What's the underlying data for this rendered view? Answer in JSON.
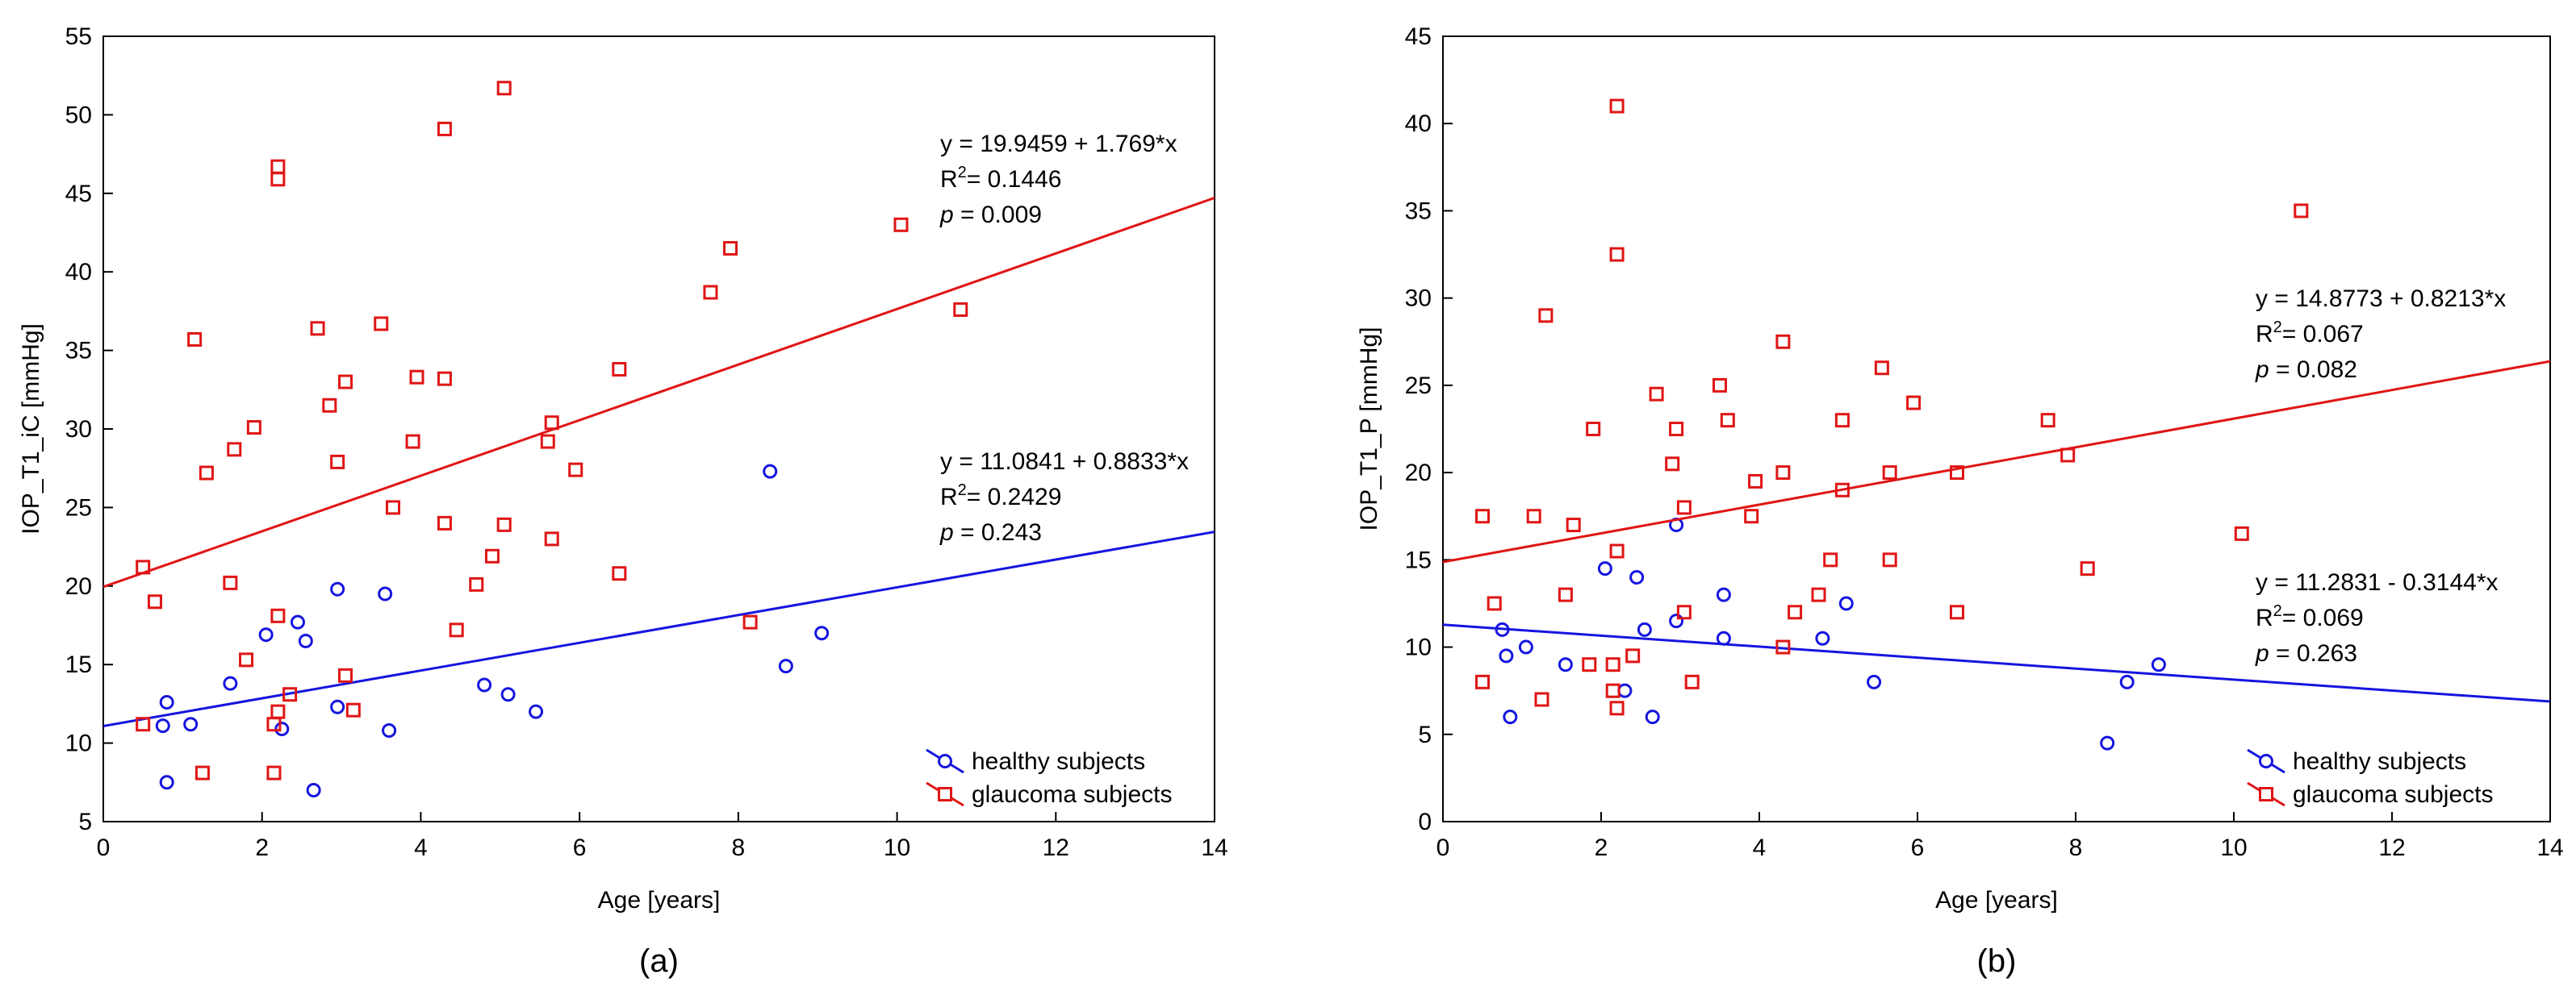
{
  "chart_data": [
    {
      "type": "scatter",
      "panel_label": "(a)",
      "xlabel": "Age [years]",
      "ylabel": "IOP_T1_iC [mmHg]",
      "xlim": [
        0,
        14
      ],
      "ylim": [
        5,
        55
      ],
      "x_ticks": [
        "0",
        "2",
        "4",
        "6",
        "8",
        "10",
        "12",
        "14"
      ],
      "y_ticks": [
        "5",
        "10",
        "15",
        "20",
        "25",
        "30",
        "35",
        "40",
        "45",
        "50",
        "55"
      ],
      "legend_position": "bottom-right",
      "series": [
        {
          "name": "healthy subjects",
          "marker": "circle",
          "color": "#1515e0",
          "points": [
            [
              0.75,
              11.1
            ],
            [
              0.8,
              12.6
            ],
            [
              0.8,
              7.5
            ],
            [
              1.1,
              11.2
            ],
            [
              1.6,
              13.8
            ],
            [
              2.05,
              16.9
            ],
            [
              2.25,
              10.9
            ],
            [
              2.45,
              17.7
            ],
            [
              2.55,
              16.5
            ],
            [
              2.65,
              7.0
            ],
            [
              2.95,
              19.8
            ],
            [
              2.95,
              12.3
            ],
            [
              3.55,
              19.5
            ],
            [
              3.6,
              10.8
            ],
            [
              4.8,
              13.7
            ],
            [
              5.1,
              13.1
            ],
            [
              5.45,
              12.0
            ],
            [
              8.4,
              27.3
            ],
            [
              8.6,
              14.9
            ],
            [
              9.05,
              17.0
            ]
          ],
          "fit": {
            "intercept": 11.0841,
            "slope": 0.8833,
            "equation": "y = 11.0841 + 0.8833*x",
            "r2_label": "R",
            "r2_sup": "2",
            "r2_value": "= 0.2429",
            "p_label": "p",
            "p_value": " = 0.243"
          }
        },
        {
          "name": "glaucoma subjects",
          "marker": "square",
          "color": "#e01515",
          "points": [
            [
              0.5,
              21.2
            ],
            [
              0.5,
              11.2
            ],
            [
              0.65,
              19.0
            ],
            [
              1.15,
              35.7
            ],
            [
              1.25,
              8.1
            ],
            [
              1.3,
              27.2
            ],
            [
              1.6,
              20.2
            ],
            [
              1.65,
              28.7
            ],
            [
              1.8,
              15.3
            ],
            [
              1.9,
              30.1
            ],
            [
              2.15,
              8.1
            ],
            [
              2.15,
              11.2
            ],
            [
              2.2,
              12.0
            ],
            [
              2.2,
              18.1
            ],
            [
              2.2,
              46.7
            ],
            [
              2.2,
              45.9
            ],
            [
              2.35,
              13.1
            ],
            [
              2.7,
              36.4
            ],
            [
              2.85,
              31.5
            ],
            [
              2.95,
              27.9
            ],
            [
              3.05,
              33.0
            ],
            [
              3.05,
              14.3
            ],
            [
              3.15,
              12.1
            ],
            [
              3.5,
              36.7
            ],
            [
              3.65,
              25.0
            ],
            [
              3.9,
              29.2
            ],
            [
              3.95,
              33.3
            ],
            [
              4.3,
              49.1
            ],
            [
              4.3,
              33.2
            ],
            [
              4.3,
              24.0
            ],
            [
              4.45,
              17.2
            ],
            [
              4.7,
              20.1
            ],
            [
              4.9,
              21.9
            ],
            [
              5.05,
              51.7
            ],
            [
              5.05,
              23.9
            ],
            [
              5.6,
              29.2
            ],
            [
              5.65,
              30.4
            ],
            [
              5.65,
              23.0
            ],
            [
              5.95,
              27.4
            ],
            [
              6.5,
              33.8
            ],
            [
              6.5,
              20.8
            ],
            [
              7.65,
              38.7
            ],
            [
              7.9,
              41.5
            ],
            [
              8.15,
              17.7
            ],
            [
              10.05,
              43.0
            ],
            [
              10.8,
              37.6
            ]
          ],
          "fit": {
            "intercept": 19.9459,
            "slope": 1.769,
            "equation": "y = 19.9459 + 1.769*x",
            "r2_label": "R",
            "r2_sup": "2",
            "r2_value": "= 0.1446",
            "p_label": "p",
            "p_value": " = 0.009"
          }
        }
      ]
    },
    {
      "type": "scatter",
      "panel_label": "(b)",
      "xlabel": "Age [years]",
      "ylabel": "IOP_T1_P [mmHg]",
      "xlim": [
        0,
        14
      ],
      "ylim": [
        0,
        45
      ],
      "x_ticks": [
        "0",
        "2",
        "4",
        "6",
        "8",
        "10",
        "12",
        "14"
      ],
      "y_ticks": [
        "0",
        "5",
        "10",
        "15",
        "20",
        "25",
        "30",
        "35",
        "40",
        "45"
      ],
      "legend_position": "bottom-right",
      "series": [
        {
          "name": "healthy subjects",
          "marker": "circle",
          "color": "#1515e0",
          "points": [
            [
              0.75,
              11.0
            ],
            [
              0.8,
              9.5
            ],
            [
              0.85,
              6.0
            ],
            [
              1.05,
              10.0
            ],
            [
              1.55,
              9.0
            ],
            [
              2.05,
              14.5
            ],
            [
              2.3,
              7.5
            ],
            [
              2.45,
              14.0
            ],
            [
              2.55,
              11.0
            ],
            [
              2.65,
              6.0
            ],
            [
              2.95,
              17.0
            ],
            [
              2.95,
              11.5
            ],
            [
              3.55,
              13.0
            ],
            [
              3.55,
              10.5
            ],
            [
              4.8,
              10.5
            ],
            [
              5.1,
              12.5
            ],
            [
              5.45,
              8.0
            ],
            [
              8.4,
              4.5
            ],
            [
              8.65,
              8.0
            ],
            [
              9.05,
              9.0
            ]
          ],
          "fit": {
            "intercept": 11.2831,
            "slope": -0.3144,
            "equation": "y = 11.2831 - 0.3144*x",
            "r2_label": "R",
            "r2_sup": "2",
            "r2_value": "= 0.069",
            "p_label": "p",
            "p_value": " = 0.263"
          }
        },
        {
          "name": "glaucoma subjects",
          "marker": "square",
          "color": "#e01515",
          "points": [
            [
              0.5,
              17.5
            ],
            [
              0.5,
              8.0
            ],
            [
              0.65,
              12.5
            ],
            [
              1.15,
              17.5
            ],
            [
              1.25,
              7.0
            ],
            [
              1.3,
              29.0
            ],
            [
              1.55,
              13.0
            ],
            [
              1.65,
              17.0
            ],
            [
              1.85,
              9.0
            ],
            [
              1.9,
              22.5
            ],
            [
              2.15,
              9.0
            ],
            [
              2.15,
              7.5
            ],
            [
              2.2,
              15.5
            ],
            [
              2.2,
              6.5
            ],
            [
              2.2,
              41.0
            ],
            [
              2.2,
              32.5
            ],
            [
              2.4,
              9.5
            ],
            [
              2.7,
              24.5
            ],
            [
              2.9,
              20.5
            ],
            [
              2.95,
              22.5
            ],
            [
              3.05,
              18.0
            ],
            [
              3.05,
              12.0
            ],
            [
              3.15,
              8.0
            ],
            [
              3.5,
              25.0
            ],
            [
              3.6,
              23.0
            ],
            [
              3.9,
              17.5
            ],
            [
              3.95,
              19.5
            ],
            [
              4.3,
              27.5
            ],
            [
              4.3,
              20.0
            ],
            [
              4.3,
              10.0
            ],
            [
              4.45,
              12.0
            ],
            [
              4.75,
              13.0
            ],
            [
              4.9,
              15.0
            ],
            [
              5.05,
              23.0
            ],
            [
              5.05,
              19.0
            ],
            [
              5.55,
              26.0
            ],
            [
              5.65,
              20.0
            ],
            [
              5.65,
              15.0
            ],
            [
              5.95,
              24.0
            ],
            [
              6.5,
              20.0
            ],
            [
              6.5,
              12.0
            ],
            [
              7.65,
              23.0
            ],
            [
              7.9,
              21.0
            ],
            [
              8.15,
              14.5
            ],
            [
              10.1,
              16.5
            ],
            [
              10.85,
              35.0
            ]
          ],
          "fit": {
            "intercept": 14.8773,
            "slope": 0.8213,
            "equation": "y = 14.8773 + 0.8213*x",
            "r2_label": "R",
            "r2_sup": "2",
            "r2_value": "= 0.067",
            "p_label": "p",
            "p_value": " = 0.082"
          }
        }
      ]
    }
  ]
}
